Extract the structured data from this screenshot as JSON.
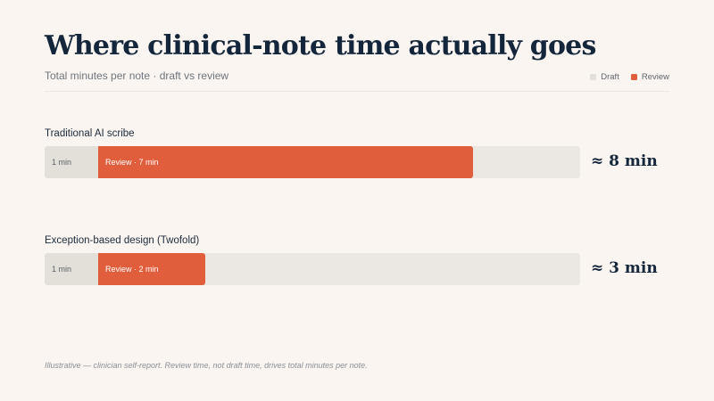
{
  "header": {
    "title": "Where clinical-note time actually goes",
    "subtitle": "Total minutes per note · draft vs review"
  },
  "colors": {
    "draft": "#e3e0da",
    "review": "#e05e3c",
    "track": "#ebe8e3"
  },
  "legend": [
    {
      "label": "Draft",
      "color": "#e3e0da"
    },
    {
      "label": "Review",
      "color": "#e05e3c"
    }
  ],
  "footnote": "Illustrative — clinician self-report. Review time, not draft time, drives total minutes per note.",
  "chart_data": {
    "type": "bar",
    "orientation": "horizontal",
    "stacked": true,
    "xlim": [
      0,
      10
    ],
    "categories": [
      "Traditional AI scribe",
      "Exception-based design (Twofold)"
    ],
    "series": [
      {
        "name": "Draft",
        "values": [
          1,
          1
        ]
      },
      {
        "name": "Review",
        "values": [
          7,
          2
        ]
      }
    ],
    "data_labels": [
      {
        "draft": "1 min",
        "review": "Review · 7 min",
        "total": "≈ 8 min"
      },
      {
        "draft": "1 min",
        "review": "Review · 2 min",
        "total": "≈ 3 min"
      }
    ],
    "title": "Where clinical-note time actually goes",
    "subtitle": "Total minutes per note · draft vs review",
    "grid": false,
    "legend_position": "top-right"
  }
}
